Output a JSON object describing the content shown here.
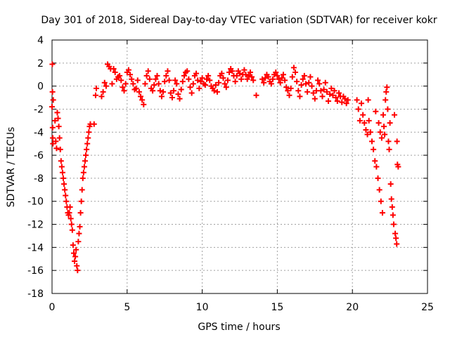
{
  "chart_data": {
    "type": "scatter",
    "title": "Day 301 of 2018, Sidereal Day-to-day VTEC variation (SDTVAR) for receiver kokr",
    "xlabel": "GPS time / hours",
    "ylabel": "SDTVAR / TECUs",
    "xlim": [
      0,
      25
    ],
    "ylim": [
      -18,
      4
    ],
    "xticks": [
      0,
      5,
      10,
      15,
      20,
      25
    ],
    "yticks": [
      -18,
      -16,
      -14,
      -12,
      -10,
      -8,
      -6,
      -4,
      -2,
      0,
      2,
      4
    ],
    "grid": true,
    "marker": "+",
    "series": [
      {
        "name": "SDTVAR",
        "color": "#ff0000",
        "points": [
          [
            0.0,
            -1.8
          ],
          [
            0.02,
            1.9
          ],
          [
            0.03,
            -0.5
          ],
          [
            0.04,
            -3.6
          ],
          [
            0.05,
            -4.5
          ],
          [
            0.06,
            -5.0
          ],
          [
            0.08,
            -1.2
          ],
          [
            0.2,
            -3.0
          ],
          [
            0.25,
            -4.8
          ],
          [
            0.3,
            -5.4
          ],
          [
            0.35,
            -2.3
          ],
          [
            0.4,
            -2.8
          ],
          [
            0.45,
            -3.5
          ],
          [
            0.5,
            -4.5
          ],
          [
            0.55,
            -5.5
          ],
          [
            0.6,
            -6.5
          ],
          [
            0.65,
            -7.0
          ],
          [
            0.7,
            -7.5
          ],
          [
            0.75,
            -8.0
          ],
          [
            0.8,
            -8.5
          ],
          [
            0.85,
            -9.0
          ],
          [
            0.9,
            -9.5
          ],
          [
            0.95,
            -10.0
          ],
          [
            1.0,
            -10.5
          ],
          [
            1.05,
            -11.0
          ],
          [
            1.1,
            -11.2
          ],
          [
            1.15,
            -11.0
          ],
          [
            1.2,
            -10.5
          ],
          [
            1.25,
            -11.5
          ],
          [
            1.3,
            -12.0
          ],
          [
            1.35,
            -12.5
          ],
          [
            1.4,
            -13.8
          ],
          [
            1.45,
            -14.5
          ],
          [
            1.5,
            -15.2
          ],
          [
            1.55,
            -14.8
          ],
          [
            1.6,
            -14.2
          ],
          [
            1.65,
            -15.6
          ],
          [
            1.7,
            -16.0
          ],
          [
            1.75,
            -13.5
          ],
          [
            1.8,
            -12.8
          ],
          [
            1.85,
            -12.2
          ],
          [
            1.9,
            -11.0
          ],
          [
            1.95,
            -10.0
          ],
          [
            2.0,
            -9.0
          ],
          [
            2.05,
            -8.0
          ],
          [
            2.1,
            -7.5
          ],
          [
            2.15,
            -7.0
          ],
          [
            2.2,
            -6.5
          ],
          [
            2.25,
            -6.0
          ],
          [
            2.3,
            -5.5
          ],
          [
            2.35,
            -5.0
          ],
          [
            2.4,
            -4.5
          ],
          [
            2.45,
            -4.0
          ],
          [
            2.5,
            -3.5
          ],
          [
            2.55,
            -3.3
          ],
          [
            2.8,
            -3.3
          ],
          [
            2.9,
            -0.8
          ],
          [
            2.95,
            -0.2
          ],
          [
            3.3,
            -0.9
          ],
          [
            3.4,
            -0.5
          ],
          [
            3.5,
            0.3
          ],
          [
            3.6,
            0.0
          ],
          [
            3.7,
            1.9
          ],
          [
            3.8,
            1.7
          ],
          [
            3.9,
            1.5
          ],
          [
            4.0,
            0.2
          ],
          [
            4.1,
            1.5
          ],
          [
            4.2,
            1.2
          ],
          [
            4.3,
            0.6
          ],
          [
            4.4,
            0.8
          ],
          [
            4.5,
            0.9
          ],
          [
            4.6,
            0.5
          ],
          [
            4.7,
            -0.1
          ],
          [
            4.8,
            -0.4
          ],
          [
            4.9,
            0.2
          ],
          [
            5.0,
            1.2
          ],
          [
            5.1,
            1.4
          ],
          [
            5.2,
            1.0
          ],
          [
            5.3,
            0.6
          ],
          [
            5.4,
            0.2
          ],
          [
            5.5,
            -0.3
          ],
          [
            5.6,
            -0.2
          ],
          [
            5.7,
            0.5
          ],
          [
            5.8,
            -0.5
          ],
          [
            5.9,
            -0.9
          ],
          [
            6.0,
            -1.2
          ],
          [
            6.1,
            -1.6
          ],
          [
            6.2,
            0.2
          ],
          [
            6.3,
            0.9
          ],
          [
            6.4,
            1.3
          ],
          [
            6.5,
            0.6
          ],
          [
            6.6,
            -0.2
          ],
          [
            6.7,
            -0.4
          ],
          [
            6.8,
            0.1
          ],
          [
            6.9,
            0.6
          ],
          [
            7.0,
            0.9
          ],
          [
            7.1,
            0.2
          ],
          [
            7.2,
            -0.4
          ],
          [
            7.3,
            -0.9
          ],
          [
            7.4,
            -0.5
          ],
          [
            7.5,
            0.4
          ],
          [
            7.6,
            0.9
          ],
          [
            7.7,
            1.3
          ],
          [
            7.8,
            0.5
          ],
          [
            7.9,
            -0.6
          ],
          [
            8.0,
            -1.0
          ],
          [
            8.1,
            -0.4
          ],
          [
            8.2,
            0.5
          ],
          [
            8.3,
            0.2
          ],
          [
            8.4,
            -0.7
          ],
          [
            8.5,
            -1.1
          ],
          [
            8.6,
            -0.3
          ],
          [
            8.7,
            0.4
          ],
          [
            8.8,
            0.9
          ],
          [
            8.9,
            1.2
          ],
          [
            9.0,
            1.3
          ],
          [
            9.1,
            0.6
          ],
          [
            9.2,
            -0.1
          ],
          [
            9.3,
            -0.6
          ],
          [
            9.4,
            0.2
          ],
          [
            9.5,
            0.9
          ],
          [
            9.6,
            1.1
          ],
          [
            9.7,
            0.5
          ],
          [
            9.8,
            -0.2
          ],
          [
            9.9,
            0.4
          ],
          [
            10.0,
            0.7
          ],
          [
            10.1,
            0.2
          ],
          [
            10.2,
            0.1
          ],
          [
            10.3,
            0.6
          ],
          [
            10.4,
            0.9
          ],
          [
            10.5,
            0.5
          ],
          [
            10.6,
            0.0
          ],
          [
            10.7,
            -0.2
          ],
          [
            10.8,
            -0.4
          ],
          [
            10.9,
            0.1
          ],
          [
            11.0,
            -0.5
          ],
          [
            11.1,
            0.3
          ],
          [
            11.2,
            0.9
          ],
          [
            11.3,
            1.1
          ],
          [
            11.4,
            0.7
          ],
          [
            11.5,
            0.2
          ],
          [
            11.6,
            -0.1
          ],
          [
            11.7,
            0.5
          ],
          [
            11.8,
            1.2
          ],
          [
            11.9,
            1.5
          ],
          [
            12.0,
            1.3
          ],
          [
            12.1,
            0.9
          ],
          [
            12.2,
            0.4
          ],
          [
            12.3,
            0.9
          ],
          [
            12.4,
            1.3
          ],
          [
            12.5,
            1.1
          ],
          [
            12.6,
            0.6
          ],
          [
            12.7,
            1.0
          ],
          [
            12.8,
            1.4
          ],
          [
            12.9,
            1.0
          ],
          [
            13.0,
            0.6
          ],
          [
            13.1,
            0.9
          ],
          [
            13.2,
            1.2
          ],
          [
            13.3,
            0.8
          ],
          [
            13.4,
            0.5
          ],
          [
            13.6,
            -0.8
          ],
          [
            14.0,
            0.6
          ],
          [
            14.1,
            0.3
          ],
          [
            14.2,
            0.7
          ],
          [
            14.3,
            1.0
          ],
          [
            14.4,
            0.8
          ],
          [
            14.5,
            0.4
          ],
          [
            14.6,
            0.2
          ],
          [
            14.7,
            0.6
          ],
          [
            14.8,
            1.0
          ],
          [
            14.9,
            1.2
          ],
          [
            15.0,
            0.9
          ],
          [
            15.1,
            0.6
          ],
          [
            15.2,
            0.3
          ],
          [
            15.3,
            0.7
          ],
          [
            15.4,
            1.0
          ],
          [
            15.5,
            0.5
          ],
          [
            15.6,
            -0.1
          ],
          [
            15.7,
            -0.4
          ],
          [
            15.8,
            -0.8
          ],
          [
            15.9,
            -0.2
          ],
          [
            16.0,
            0.8
          ],
          [
            16.1,
            1.6
          ],
          [
            16.2,
            1.2
          ],
          [
            16.3,
            0.4
          ],
          [
            16.4,
            -0.4
          ],
          [
            16.5,
            -0.9
          ],
          [
            16.6,
            0.1
          ],
          [
            16.7,
            0.6
          ],
          [
            16.8,
            0.9
          ],
          [
            16.9,
            0.2
          ],
          [
            17.0,
            -0.5
          ],
          [
            17.1,
            0.3
          ],
          [
            17.2,
            0.8
          ],
          [
            17.3,
            0.0
          ],
          [
            17.4,
            -0.6
          ],
          [
            17.5,
            -1.1
          ],
          [
            17.6,
            -0.4
          ],
          [
            17.7,
            0.5
          ],
          [
            17.8,
            0.2
          ],
          [
            17.9,
            -0.4
          ],
          [
            18.0,
            -0.9
          ],
          [
            18.1,
            -0.3
          ],
          [
            18.2,
            0.3
          ],
          [
            18.3,
            -0.5
          ],
          [
            18.4,
            -1.3
          ],
          [
            18.5,
            -0.7
          ],
          [
            18.6,
            -0.2
          ],
          [
            18.7,
            -0.8
          ],
          [
            18.8,
            -0.4
          ],
          [
            18.9,
            -1.0
          ],
          [
            19.0,
            -1.3
          ],
          [
            19.1,
            -0.6
          ],
          [
            19.2,
            -0.9
          ],
          [
            19.3,
            -1.4
          ],
          [
            19.4,
            -0.9
          ],
          [
            19.5,
            -1.1
          ],
          [
            19.6,
            -1.5
          ],
          [
            19.7,
            -1.2
          ],
          [
            20.3,
            -1.2
          ],
          [
            20.4,
            -2.0
          ],
          [
            20.5,
            -3.0
          ],
          [
            20.6,
            -1.5
          ],
          [
            20.7,
            -2.5
          ],
          [
            20.8,
            -3.2
          ],
          [
            20.9,
            -3.8
          ],
          [
            21.0,
            -4.2
          ],
          [
            21.05,
            -1.2
          ],
          [
            21.1,
            -3.0
          ],
          [
            21.2,
            -4.0
          ],
          [
            21.3,
            -4.8
          ],
          [
            21.4,
            -5.5
          ],
          [
            21.5,
            -6.5
          ],
          [
            21.55,
            -2.2
          ],
          [
            21.6,
            -7.0
          ],
          [
            21.7,
            -8.0
          ],
          [
            21.75,
            -3.2
          ],
          [
            21.8,
            -9.0
          ],
          [
            21.85,
            -4.0
          ],
          [
            21.9,
            -10.0
          ],
          [
            21.95,
            -4.5
          ],
          [
            22.0,
            -11.0
          ],
          [
            22.05,
            -2.5
          ],
          [
            22.1,
            -3.5
          ],
          [
            22.15,
            -4.2
          ],
          [
            22.2,
            -1.2
          ],
          [
            22.25,
            -0.5
          ],
          [
            22.3,
            -0.1
          ],
          [
            22.35,
            -2.0
          ],
          [
            22.4,
            -4.8
          ],
          [
            22.45,
            -5.5
          ],
          [
            22.5,
            -3.2
          ],
          [
            22.55,
            -8.5
          ],
          [
            22.6,
            -9.8
          ],
          [
            22.65,
            -10.5
          ],
          [
            22.7,
            -11.2
          ],
          [
            22.75,
            -12.0
          ],
          [
            22.8,
            -2.5
          ],
          [
            22.85,
            -12.8
          ],
          [
            22.9,
            -13.2
          ],
          [
            22.95,
            -13.7
          ],
          [
            22.97,
            -4.8
          ],
          [
            23.0,
            -6.8
          ],
          [
            23.05,
            -7.0
          ]
        ]
      }
    ]
  }
}
